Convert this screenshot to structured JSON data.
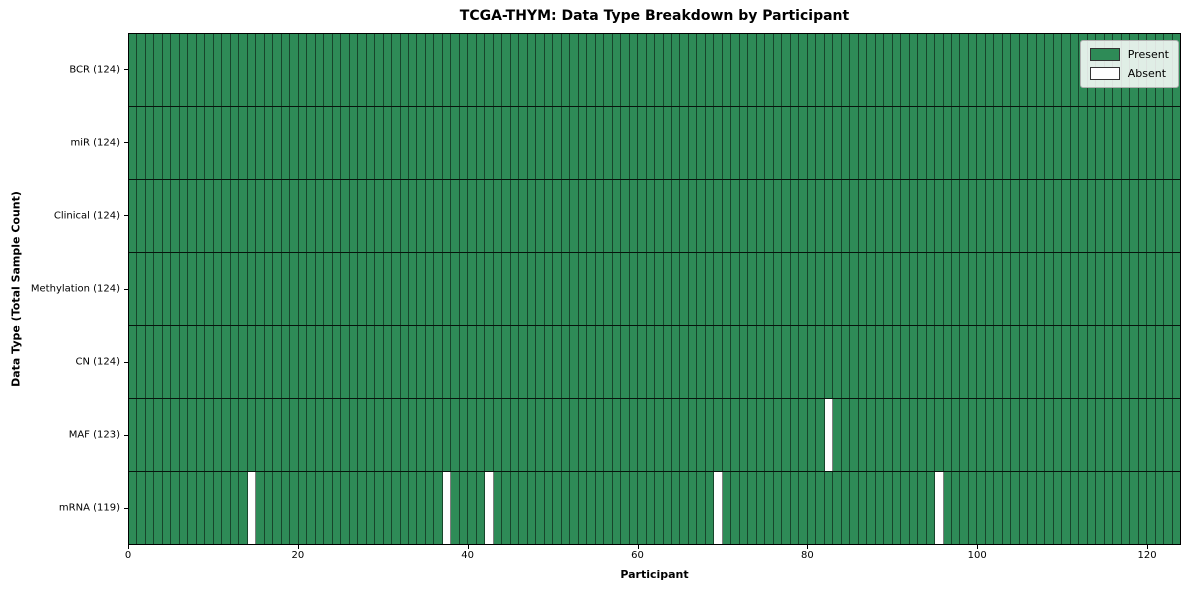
{
  "chart_data": {
    "type": "heatmap",
    "title": "TCGA-THYM: Data Type Breakdown by Participant",
    "xlabel": "Participant",
    "ylabel": "Data Type (Total Sample Count)",
    "xlim": [
      0,
      124
    ],
    "n_participants": 124,
    "x_ticks": [
      0,
      20,
      40,
      60,
      80,
      100,
      120
    ],
    "rows": [
      {
        "label": "BCR (124)",
        "present_count": 124,
        "absent_participants": []
      },
      {
        "label": "miR (124)",
        "present_count": 124,
        "absent_participants": []
      },
      {
        "label": "Clinical (124)",
        "present_count": 124,
        "absent_participants": []
      },
      {
        "label": "Methylation (124)",
        "present_count": 124,
        "absent_participants": []
      },
      {
        "label": "CN (124)",
        "present_count": 124,
        "absent_participants": []
      },
      {
        "label": "MAF (123)",
        "present_count": 123,
        "absent_participants": [
          82
        ]
      },
      {
        "label": "mRNA (119)",
        "present_count": 119,
        "absent_participants": [
          14,
          37,
          42,
          69,
          95
        ]
      }
    ],
    "legend": [
      {
        "label": "Present",
        "color": "#2e8b57"
      },
      {
        "label": "Absent",
        "color": "#ffffff"
      }
    ],
    "legend_position": "upper right",
    "colors": {
      "present": "#2e8b57",
      "absent": "#ffffff",
      "cell_edge": "rgba(0,0,0,0.5)",
      "row_divider": "#000000",
      "spine": "#000000"
    },
    "grid": false
  }
}
